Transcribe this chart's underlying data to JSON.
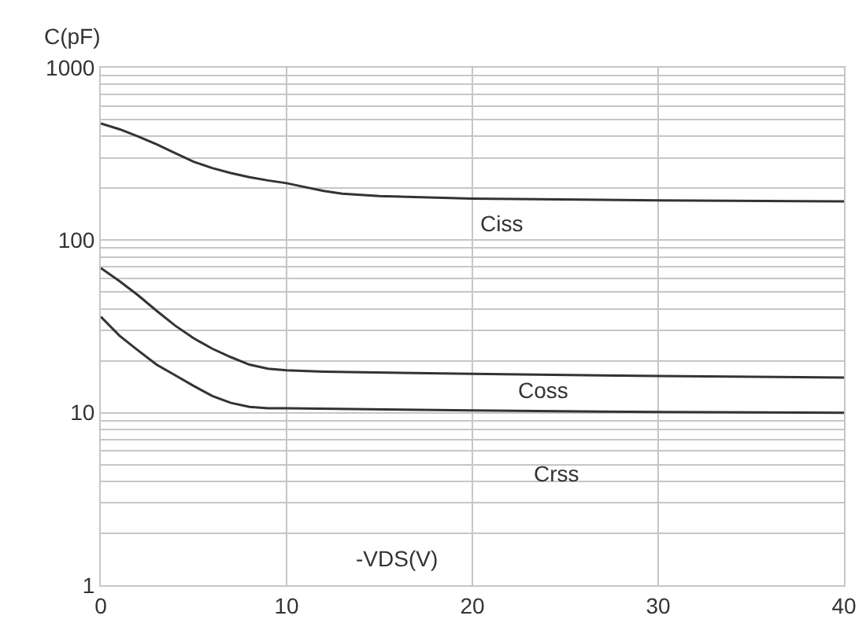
{
  "chart_data": {
    "type": "line",
    "ylabel": "C(pF)",
    "xlabel": "-VDS(V)",
    "log": "y",
    "grid": true,
    "marker": "none",
    "line_style": "solid",
    "legend": false,
    "xlim": [
      0,
      40
    ],
    "xticks": [
      0,
      10,
      20,
      30,
      40
    ],
    "ylim": [
      1,
      1000
    ],
    "yticks": [
      1,
      {
        "value": 2,
        "label": null
      },
      {
        "value": 3,
        "label": null
      },
      {
        "value": 4,
        "label": null
      },
      {
        "value": 5,
        "label": null
      },
      {
        "value": 6,
        "label": null
      },
      {
        "value": 7,
        "label": null
      },
      {
        "value": 8,
        "label": null
      },
      {
        "value": 9,
        "label": null
      },
      10,
      {
        "value": 20,
        "label": null
      },
      {
        "value": 30,
        "label": null
      },
      {
        "value": 40,
        "label": null
      },
      {
        "value": 50,
        "label": null
      },
      {
        "value": 60,
        "label": null
      },
      {
        "value": 70,
        "label": null
      },
      {
        "value": 80,
        "label": null
      },
      {
        "value": 90,
        "label": null
      },
      100,
      {
        "value": 200,
        "label": null
      },
      {
        "value": 300,
        "label": null
      },
      {
        "value": 400,
        "label": null
      },
      {
        "value": 500,
        "label": null
      },
      {
        "value": 600,
        "label": null
      },
      {
        "value": 700,
        "label": null
      },
      {
        "value": 800,
        "label": null
      },
      {
        "value": 900,
        "label": null
      },
      1000
    ],
    "series": [
      {
        "name": "Ciss",
        "color": "#333333",
        "x": [
          0,
          1,
          2,
          3,
          4,
          5,
          6,
          7,
          8,
          9,
          10,
          11,
          12,
          13,
          15,
          20,
          30,
          40
        ],
        "values": [
          475,
          440,
          400,
          360,
          320,
          285,
          262,
          245,
          232,
          222,
          214,
          203,
          193,
          186,
          180,
          174,
          170,
          168
        ]
      },
      {
        "name": "Coss",
        "color": "#333333",
        "x": [
          0,
          1,
          2,
          3,
          4,
          5,
          6,
          7,
          8,
          9,
          10,
          12,
          20,
          30,
          40
        ],
        "values": [
          69,
          58,
          48,
          39,
          32,
          27,
          23.5,
          21,
          19,
          18,
          17.6,
          17.3,
          16.8,
          16.3,
          16
        ]
      },
      {
        "name": "Crss",
        "color": "#333333",
        "x": [
          0,
          1,
          2,
          3,
          4,
          5,
          6,
          7,
          8,
          9,
          10,
          20,
          30,
          40
        ],
        "values": [
          36,
          28,
          23,
          19,
          16.5,
          14.3,
          12.5,
          11.4,
          10.8,
          10.6,
          10.6,
          10.3,
          10.1,
          10
        ]
      }
    ]
  }
}
